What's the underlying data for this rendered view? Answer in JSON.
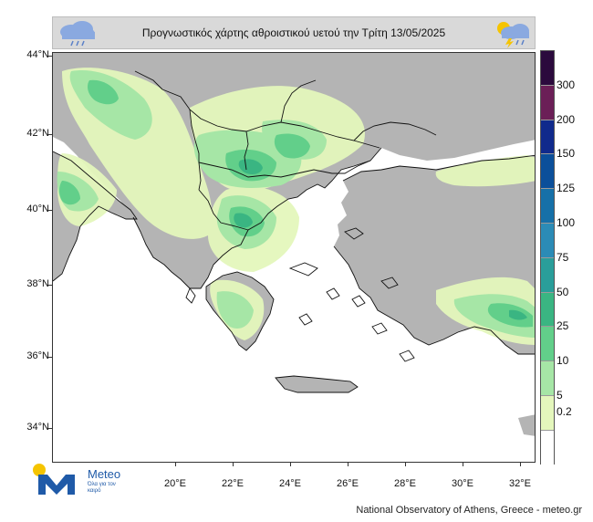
{
  "header": {
    "title": "Προγνωστικός χάρτης αθροιστικού υετού την  Τρίτη 13/05/2025",
    "left_icon": "rain-cloud-icon",
    "right_icon": "thunderstorm-sun-cloud-icon"
  },
  "axes": {
    "latitudes": [
      "44°N",
      "42°N",
      "40°N",
      "38°N",
      "36°N",
      "34°N"
    ],
    "longitudes": [
      "20°E",
      "22°E",
      "24°E",
      "26°E",
      "28°E",
      "30°E",
      "32°E"
    ]
  },
  "colorbar": {
    "labels": [
      "300",
      "200",
      "150",
      "125",
      "100",
      "75",
      "50",
      "25",
      "10",
      "5",
      "0.2"
    ],
    "colors": [
      "#2b0a3d",
      "#6b1f57",
      "#102a8c",
      "#0b4f9a",
      "#1670a8",
      "#2b8bb6",
      "#2a9e9a",
      "#3ab582",
      "#62cf8a",
      "#a6e6a6",
      "#e4f7bc",
      "#ffffff"
    ]
  },
  "map": {
    "colors": {
      "sea": "#ffffff",
      "land": "#b4b4b4",
      "light_rain": "#e4f7bc",
      "moderate_rain": "#a6e6a6",
      "heavy_rain": "#62cf8a",
      "very_heavy_rain": "#3ab582"
    }
  },
  "logo": {
    "word": "Meteo",
    "tagline": "Όλα για τον καιρό"
  },
  "footer": {
    "credit": "National Observatory of Athens, Greece - meteo.gr"
  }
}
